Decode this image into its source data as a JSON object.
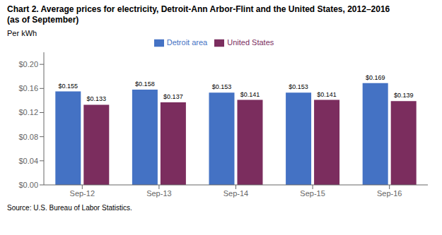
{
  "chart_data": {
    "type": "bar",
    "title": "Chart 2. Average prices for electricity, Detroit-Ann Arbor-Flint and the United States, 2012–2016",
    "subtitle": "(as of September)",
    "ylabel": "Per kWh",
    "source": "Source: U.S. Bureau of Labor Statistics.",
    "categories": [
      "Sep-12",
      "Sep-13",
      "Sep-14",
      "Sep-15",
      "Sep-16"
    ],
    "series": [
      {
        "name": "Detroit area",
        "color": "#4472C4",
        "values": [
          0.155,
          0.158,
          0.153,
          0.153,
          0.169
        ],
        "value_labels": [
          "$0.155",
          "$0.158",
          "$0.153",
          "$0.153",
          "$0.169"
        ]
      },
      {
        "name": "United States",
        "color": "#7B2D5E",
        "values": [
          0.133,
          0.137,
          0.141,
          0.141,
          0.139
        ],
        "value_labels": [
          "$0.133",
          "$0.137",
          "$0.141",
          "$0.141",
          "$0.139"
        ]
      }
    ],
    "ylim": [
      0.0,
      0.22
    ],
    "yticks": [
      {
        "value": 0.0,
        "label": "$0.00"
      },
      {
        "value": 0.04,
        "label": "$0.04"
      },
      {
        "value": 0.08,
        "label": "$0.08"
      },
      {
        "value": 0.12,
        "label": "$0.12"
      },
      {
        "value": 0.16,
        "label": "$0.16"
      },
      {
        "value": 0.2,
        "label": "$0.20"
      }
    ],
    "data_labels": true,
    "legend": "top",
    "grid": false
  }
}
